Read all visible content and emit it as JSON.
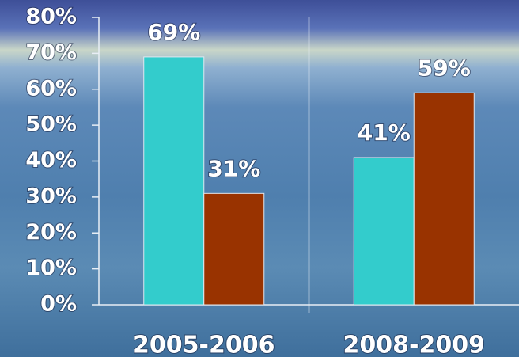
{
  "chart_data": {
    "type": "bar",
    "categories": [
      "2005-2006",
      "2008-2009"
    ],
    "series": [
      {
        "color": "#33cccc",
        "values": [
          69,
          41
        ],
        "value_labels": [
          "69%",
          "41%"
        ]
      },
      {
        "color": "#993300",
        "values": [
          31,
          59
        ],
        "value_labels": [
          "31%",
          "59%"
        ]
      }
    ],
    "ylim": [
      0,
      80
    ],
    "yticks": [
      {
        "value": 0,
        "label": "0%"
      },
      {
        "value": 10,
        "label": "10%"
      },
      {
        "value": 20,
        "label": "20%"
      },
      {
        "value": 30,
        "label": "30%"
      },
      {
        "value": 40,
        "label": "40%"
      },
      {
        "value": 50,
        "label": "50%"
      },
      {
        "value": 60,
        "label": "60%"
      },
      {
        "value": 70,
        "label": "70%"
      },
      {
        "value": 80,
        "label": "80%"
      }
    ]
  }
}
